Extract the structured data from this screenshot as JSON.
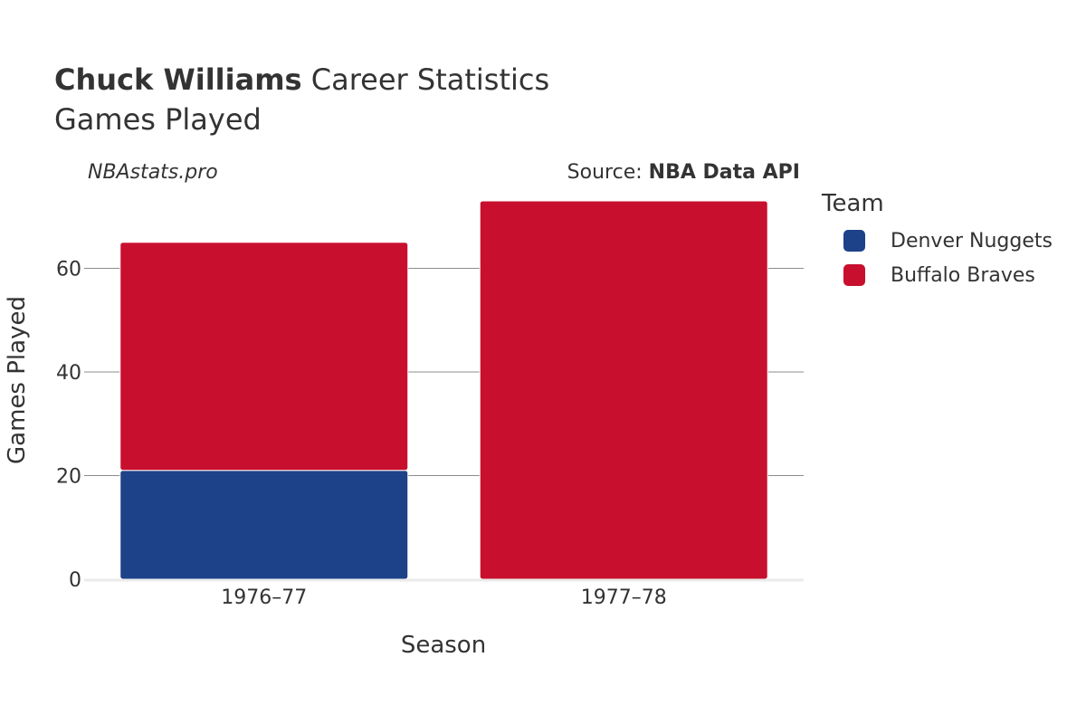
{
  "header": {
    "player_name": "Chuck Williams",
    "title_suffix": "Career Statistics",
    "subtitle": "Games Played",
    "site": "NBAstats.pro",
    "source_prefix": "Source:",
    "source_name": "NBA Data API"
  },
  "legend": {
    "title": "Team",
    "items": [
      {
        "label": "Denver Nuggets",
        "color": "#1d428a"
      },
      {
        "label": "Buffalo Braves",
        "color": "#c8102e"
      }
    ]
  },
  "chart_data": {
    "type": "bar",
    "stacked": true,
    "categories": [
      "1976–77",
      "1977–78"
    ],
    "series": [
      {
        "name": "Denver Nuggets",
        "color": "#1d428a",
        "values": [
          21,
          0
        ]
      },
      {
        "name": "Buffalo Braves",
        "color": "#c8102e",
        "values": [
          44,
          73
        ]
      }
    ],
    "xlabel": "Season",
    "ylabel": "Games Played",
    "ylim": [
      0,
      73
    ],
    "yticks": [
      0,
      20,
      40,
      60
    ],
    "grid": true,
    "legend_position": "right"
  }
}
